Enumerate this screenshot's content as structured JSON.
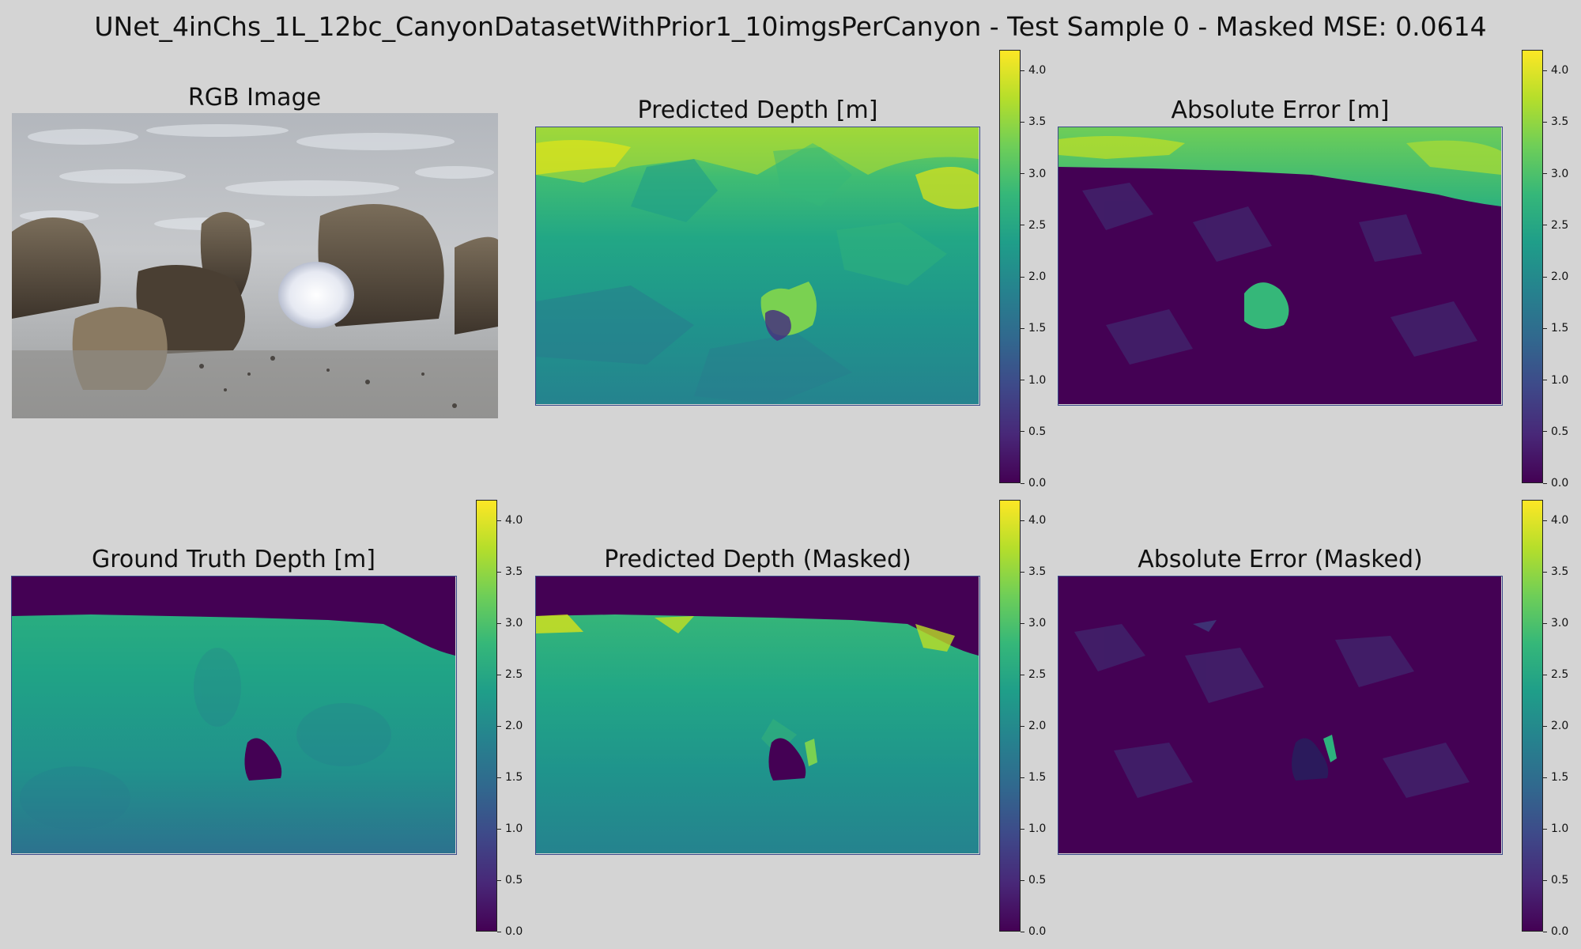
{
  "suptitle": "UNet_4inChs_1L_12bc_CanyonDatasetWithPrior1_10imgsPerCanyon - Test Sample 0 - Masked MSE: 0.0614",
  "chart_data": [
    {
      "type": "image",
      "title": "RGB Image"
    },
    {
      "type": "heatmap",
      "title": "Predicted Depth [m]",
      "colormap": "viridis",
      "vmin": 0.0,
      "vmax": 4.2,
      "colorbar_ticks": [
        "0.0",
        "0.5",
        "1.0",
        "1.5",
        "2.0",
        "2.5",
        "3.0",
        "3.5",
        "4.0"
      ]
    },
    {
      "type": "heatmap",
      "title": "Absolute Error [m]",
      "colormap": "viridis",
      "vmin": 0.0,
      "vmax": 4.2,
      "colorbar_ticks": [
        "0.0",
        "0.5",
        "1.0",
        "1.5",
        "2.0",
        "2.5",
        "3.0",
        "3.5",
        "4.0"
      ]
    },
    {
      "type": "heatmap",
      "title": "Ground Truth Depth [m]",
      "colormap": "viridis",
      "vmin": 0.0,
      "vmax": 4.2,
      "colorbar_ticks": [
        "0.0",
        "0.5",
        "1.0",
        "1.5",
        "2.0",
        "2.5",
        "3.0",
        "3.5",
        "4.0"
      ]
    },
    {
      "type": "heatmap",
      "title": "Predicted Depth (Masked)",
      "colormap": "viridis",
      "vmin": 0.0,
      "vmax": 4.2,
      "colorbar_ticks": [
        "0.0",
        "0.5",
        "1.0",
        "1.5",
        "2.0",
        "2.5",
        "3.0",
        "3.5",
        "4.0"
      ]
    },
    {
      "type": "heatmap",
      "title": "Absolute Error (Masked)",
      "colormap": "viridis",
      "vmin": 0.0,
      "vmax": 4.2,
      "colorbar_ticks": [
        "0.0",
        "0.5",
        "1.0",
        "1.5",
        "2.0",
        "2.5",
        "3.0",
        "3.5",
        "4.0"
      ]
    }
  ],
  "colors": {
    "viridis_stops": [
      "#440154",
      "#482878",
      "#3e4989",
      "#31688e",
      "#26828e",
      "#1f9e89",
      "#35b779",
      "#6ece58",
      "#b5de2b",
      "#fde725"
    ],
    "background": "#d4d4d4"
  }
}
